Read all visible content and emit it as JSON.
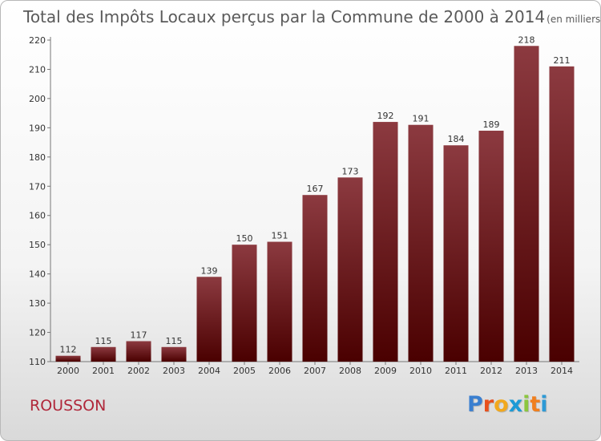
{
  "title": "Total des Impôts Locaux perçus par la Commune de 2000 à 2014",
  "subtitle": "(en milliers d'€)",
  "commune": "ROUSSON",
  "logo": {
    "letters": [
      "P",
      "r",
      "o",
      "x",
      "i",
      "t",
      "i"
    ],
    "colors": [
      "#3a7fd0",
      "#e8501c",
      "#f2a81d",
      "#1b9ad6",
      "#8cc63f",
      "#f07f1e",
      "#2d9ad6"
    ]
  },
  "colors": {
    "bar_top": "#8c3a40",
    "bar_bottom": "#4a0000",
    "commune": "#b0273a"
  },
  "chart_data": {
    "type": "bar",
    "categories": [
      "2000",
      "2001",
      "2002",
      "2003",
      "2004",
      "2005",
      "2006",
      "2007",
      "2008",
      "2009",
      "2010",
      "2011",
      "2012",
      "2013",
      "2014"
    ],
    "values": [
      112,
      115,
      117,
      115,
      139,
      150,
      151,
      167,
      173,
      192,
      191,
      184,
      189,
      218,
      211
    ],
    "ylim": [
      110,
      220
    ],
    "yticks": [
      110,
      120,
      130,
      140,
      150,
      160,
      170,
      180,
      190,
      200,
      210,
      220
    ],
    "grid": false,
    "legend": "none"
  }
}
